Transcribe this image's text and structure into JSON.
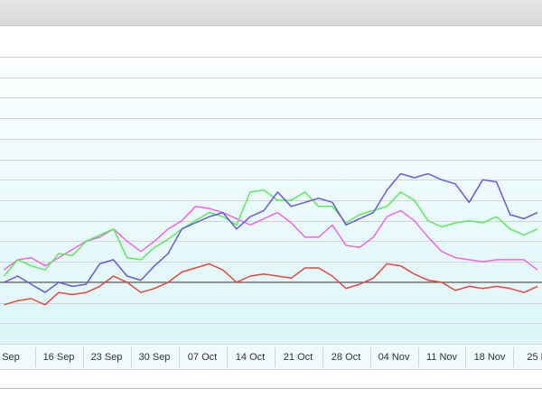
{
  "chart_data": {
    "type": "line",
    "x": [
      -1,
      1,
      3,
      5,
      7,
      9,
      11,
      13,
      15,
      17,
      19,
      21,
      23,
      25,
      27,
      29,
      31,
      33,
      35,
      37,
      39,
      41,
      43,
      45,
      47,
      49,
      51,
      53,
      55,
      57,
      59,
      61,
      63,
      65,
      67,
      69,
      71,
      73,
      75,
      77
    ],
    "xlim": [
      -1.6,
      77.7
    ],
    "xticks": [
      {
        "value": 0,
        "label": "Sep"
      },
      {
        "value": 7,
        "label": "16 Sep"
      },
      {
        "value": 14,
        "label": "23 Sep"
      },
      {
        "value": 21,
        "label": "30 Sep"
      },
      {
        "value": 28,
        "label": "07 Oct"
      },
      {
        "value": 35,
        "label": "14 Oct"
      },
      {
        "value": 42,
        "label": "21 Oct"
      },
      {
        "value": 49,
        "label": "28 Oct"
      },
      {
        "value": 56,
        "label": "04 Nov"
      },
      {
        "value": 63,
        "label": "11 Nov"
      },
      {
        "value": 70,
        "label": "18 Nov"
      },
      {
        "value": 77,
        "label": "25 N"
      }
    ],
    "ylim": [
      0,
      14
    ],
    "yticks": [
      0,
      1,
      2,
      3,
      4,
      5,
      6,
      7,
      8,
      9,
      10,
      11,
      12,
      13,
      14
    ],
    "grid": true,
    "reference_line": 3,
    "series": [
      {
        "color": "#e8453c",
        "values": [
          1.9,
          2.1,
          2.2,
          1.9,
          2.5,
          2.4,
          2.5,
          2.8,
          3.3,
          3.0,
          2.5,
          2.7,
          3.0,
          3.5,
          3.7,
          3.9,
          3.6,
          3.0,
          3.3,
          3.4,
          3.3,
          3.2,
          3.7,
          3.7,
          3.3,
          2.7,
          2.9,
          3.2,
          3.9,
          3.8,
          3.4,
          3.1,
          3.0,
          2.6,
          2.8,
          2.7,
          2.8,
          2.7,
          2.5,
          2.8
        ]
      },
      {
        "color": "#f064ee",
        "values": [
          3.6,
          4.1,
          4.2,
          3.8,
          4.2,
          4.6,
          5.0,
          5.2,
          5.6,
          5.0,
          4.5,
          5.0,
          5.6,
          6.0,
          6.7,
          6.6,
          6.4,
          6.1,
          5.8,
          6.1,
          6.4,
          5.9,
          5.2,
          5.2,
          5.8,
          4.8,
          4.7,
          5.2,
          6.2,
          6.5,
          6.0,
          5.2,
          4.5,
          4.2,
          4.1,
          4.0,
          4.1,
          4.1,
          4.1,
          3.6
        ]
      },
      {
        "color": "#5eea5a",
        "values": [
          3.3,
          4.1,
          3.8,
          3.6,
          4.4,
          4.3,
          5.0,
          5.3,
          5.6,
          4.2,
          4.1,
          4.7,
          5.1,
          5.6,
          6.0,
          6.4,
          6.2,
          5.8,
          7.4,
          7.5,
          7.0,
          7.0,
          7.4,
          6.7,
          6.7,
          5.9,
          6.3,
          6.5,
          6.7,
          7.4,
          7.0,
          6.0,
          5.7,
          5.9,
          6.0,
          5.9,
          6.2,
          5.6,
          5.3,
          5.6
        ]
      },
      {
        "color": "#6a58dc",
        "values": [
          3.0,
          3.3,
          2.9,
          2.5,
          3.0,
          2.8,
          2.9,
          3.9,
          4.1,
          3.3,
          3.1,
          3.8,
          4.4,
          5.6,
          5.9,
          6.2,
          6.4,
          5.6,
          6.2,
          6.5,
          7.4,
          6.7,
          6.9,
          7.1,
          6.9,
          5.8,
          6.1,
          6.4,
          7.5,
          8.3,
          8.1,
          8.3,
          8.0,
          7.8,
          6.9,
          8.0,
          7.9,
          6.3,
          6.1,
          6.4
        ]
      }
    ]
  }
}
